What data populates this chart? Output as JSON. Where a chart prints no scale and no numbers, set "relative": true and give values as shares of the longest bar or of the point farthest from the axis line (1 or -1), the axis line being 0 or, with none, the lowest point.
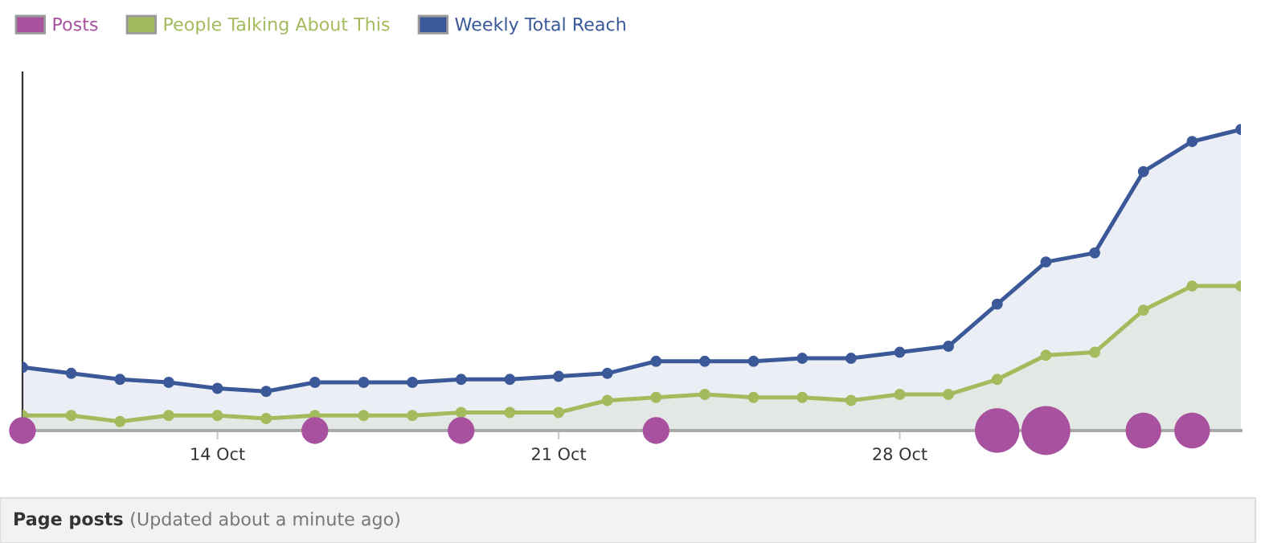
{
  "chart_data": {
    "type": "area",
    "relative": true,
    "legend": "top left",
    "grid": false,
    "marker": "circle",
    "line_style": "solid",
    "categories": [
      null,
      null,
      null,
      null,
      "14 Oct",
      null,
      null,
      null,
      null,
      null,
      null,
      "21 Oct",
      null,
      null,
      null,
      null,
      null,
      null,
      "28 Oct",
      null,
      null,
      null,
      null,
      null,
      null,
      null
    ],
    "series": [
      {
        "name": "Posts",
        "type": "bubble",
        "color": "#a8519f",
        "values": [
          0,
          null,
          null,
          null,
          null,
          null,
          0,
          null,
          null,
          0,
          null,
          null,
          null,
          0,
          null,
          null,
          null,
          null,
          null,
          null,
          0,
          0,
          null,
          0,
          0,
          null
        ],
        "sizes": [
          0.3,
          null,
          null,
          null,
          null,
          null,
          0.3,
          null,
          null,
          0.3,
          null,
          null,
          null,
          0.3,
          null,
          null,
          null,
          null,
          null,
          null,
          0.83,
          1,
          null,
          0.53,
          0.53,
          null
        ]
      },
      {
        "name": "People Talking About This",
        "color": "#a4bb5d",
        "values": [
          0.05,
          0.05,
          0.03,
          0.05,
          0.05,
          0.04,
          0.05,
          0.05,
          0.05,
          0.06,
          0.06,
          0.06,
          0.1,
          0.11,
          0.12,
          0.11,
          0.11,
          0.1,
          0.12,
          0.12,
          0.17,
          0.25,
          0.26,
          0.4,
          0.48,
          0.48
        ]
      },
      {
        "name": "Weekly Total Reach",
        "color": "#3b5998",
        "values": [
          0.21,
          0.19,
          0.17,
          0.16,
          0.14,
          0.13,
          0.16,
          0.16,
          0.16,
          0.17,
          0.17,
          0.18,
          0.19,
          0.23,
          0.23,
          0.23,
          0.24,
          0.24,
          0.26,
          0.28,
          0.42,
          0.56,
          0.59,
          0.86,
          0.96,
          1
        ]
      }
    ],
    "annotations": [
      "Page posts",
      "(Updated about a minute ago)"
    ]
  }
}
